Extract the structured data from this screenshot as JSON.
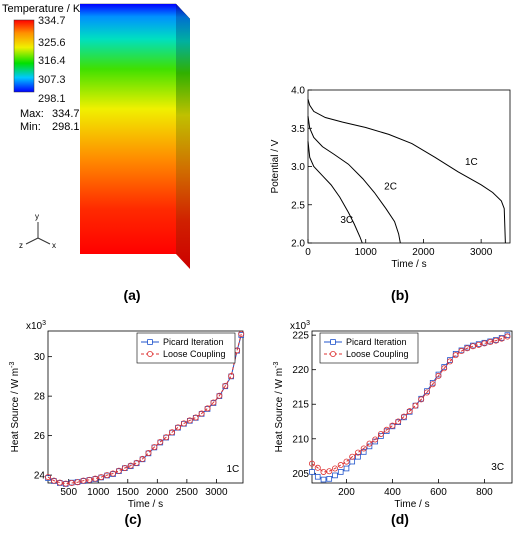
{
  "panel_a": {
    "caption": "(a)",
    "legend_title": "Temperature / K",
    "ticks": [
      "334.7",
      "325.6",
      "316.4",
      "307.3",
      "298.1"
    ],
    "max_label": "Max:",
    "max_value": "334.7",
    "min_label": "Min:",
    "min_value": "298.1",
    "axis_y": "y",
    "axis_z": "z",
    "axis_x": "x",
    "colormap": [
      "#0000ff",
      "#00c8ff",
      "#00e000",
      "#f0f000",
      "#ff9000",
      "#ff0000"
    ]
  },
  "chart_data": [
    {
      "id": "b",
      "type": "line",
      "caption": "(b)",
      "xlabel": "Time / s",
      "ylabel": "Potential / V",
      "xlim": [
        0,
        3500
      ],
      "ylim": [
        2.0,
        4.0
      ],
      "xticks": [
        0,
        1000,
        2000,
        3000
      ],
      "yticks": [
        2.0,
        2.5,
        3.0,
        3.5,
        4.0
      ],
      "ytick_labels": [
        "2.0",
        "2.5",
        "3.0",
        "3.5",
        "4.0"
      ],
      "series": [
        {
          "name": "1C",
          "color": "#000000",
          "x": [
            0,
            30,
            100,
            300,
            600,
            1000,
            1400,
            1800,
            2200,
            2600,
            3000,
            3200,
            3350,
            3400,
            3420
          ],
          "y": [
            3.88,
            3.8,
            3.72,
            3.64,
            3.58,
            3.51,
            3.42,
            3.3,
            3.12,
            2.93,
            2.76,
            2.66,
            2.55,
            2.45,
            2.0
          ]
        },
        {
          "name": "2C",
          "color": "#000000",
          "x": [
            0,
            30,
            100,
            250,
            450,
            700,
            950,
            1150,
            1350,
            1500,
            1570,
            1600
          ],
          "y": [
            3.66,
            3.5,
            3.38,
            3.26,
            3.16,
            3.03,
            2.84,
            2.66,
            2.45,
            2.28,
            2.12,
            2.0
          ]
        },
        {
          "name": "3C",
          "color": "#000000",
          "x": [
            0,
            30,
            100,
            250,
            400,
            550,
            700,
            800,
            900,
            940
          ],
          "y": [
            3.33,
            3.12,
            3.0,
            2.88,
            2.76,
            2.6,
            2.4,
            2.25,
            2.08,
            2.0
          ]
        }
      ],
      "annotations": [
        {
          "text": "1C",
          "x": 2720,
          "y": 3.02
        },
        {
          "text": "2C",
          "x": 1320,
          "y": 2.7
        },
        {
          "text": "3C",
          "x": 560,
          "y": 2.26
        }
      ]
    },
    {
      "id": "c",
      "type": "line",
      "caption": "(c)",
      "xlabel": "Time / s",
      "ylabel": "Heat Source / W m",
      "ylabel_superscript": "-3",
      "y_multiplier": "x10",
      "y_multiplier_exp": "3",
      "xlim": [
        150,
        3450
      ],
      "ylim": [
        23600,
        31300
      ],
      "xticks": [
        500,
        1000,
        1500,
        2000,
        2500,
        3000
      ],
      "yticks": [
        24000,
        26000,
        28000,
        30000
      ],
      "ytick_labels": [
        "24",
        "26",
        "28",
        "30"
      ],
      "annotations": [
        {
          "text": "1C",
          "x": 3170,
          "y": 24150
        }
      ],
      "legend": "top-right",
      "series": [
        {
          "name": "Picard Iteration",
          "color": "#2255cc",
          "dash": "",
          "marker": "square",
          "x": [
            150,
            250,
            350,
            450,
            550,
            650,
            750,
            850,
            950,
            1050,
            1150,
            1250,
            1350,
            1450,
            1550,
            1650,
            1750,
            1850,
            1950,
            2050,
            2150,
            2250,
            2350,
            2450,
            2550,
            2650,
            2750,
            2850,
            2950,
            3050,
            3150,
            3250,
            3350,
            3420
          ],
          "y": [
            23850,
            23700,
            23600,
            23550,
            23620,
            23650,
            23700,
            23750,
            23800,
            23880,
            23980,
            24050,
            24200,
            24350,
            24450,
            24600,
            24800,
            25100,
            25400,
            25650,
            25900,
            26150,
            26400,
            26600,
            26750,
            26900,
            27100,
            27350,
            27650,
            28000,
            28500,
            29000,
            30300,
            31100
          ]
        },
        {
          "name": "Loose Coupling",
          "color": "#dd3333",
          "dash": "3,2",
          "marker": "circle",
          "x": [
            150,
            250,
            350,
            450,
            550,
            650,
            750,
            850,
            950,
            1050,
            1150,
            1250,
            1350,
            1450,
            1550,
            1650,
            1750,
            1850,
            1950,
            2050,
            2150,
            2250,
            2350,
            2450,
            2550,
            2650,
            2750,
            2850,
            2950,
            3050,
            3150,
            3250,
            3350,
            3420
          ],
          "y": [
            23900,
            23720,
            23620,
            23570,
            23600,
            23640,
            23720,
            23760,
            23820,
            23900,
            24000,
            24080,
            24220,
            24360,
            24480,
            24620,
            24820,
            25120,
            25420,
            25680,
            25920,
            26170,
            26420,
            26620,
            26770,
            26920,
            27120,
            27380,
            27680,
            28020,
            28520,
            29020,
            30320,
            31150
          ]
        }
      ]
    },
    {
      "id": "d",
      "type": "line",
      "caption": "(d)",
      "xlabel": "Time / s",
      "ylabel": "Heat Source / W m",
      "ylabel_superscript": "-3",
      "y_multiplier": "x10",
      "y_multiplier_exp": "3",
      "xlim": [
        50,
        920
      ],
      "ylim": [
        203600,
        225600
      ],
      "xticks": [
        200,
        400,
        600,
        800
      ],
      "yticks": [
        205000,
        210000,
        215000,
        220000,
        225000
      ],
      "ytick_labels": [
        "205",
        "210",
        "215",
        "220",
        "225"
      ],
      "annotations": [
        {
          "text": "3C",
          "x": 830,
          "y": 205500
        }
      ],
      "legend": "top-left",
      "series": [
        {
          "name": "Picard Iteration",
          "color": "#2255cc",
          "dash": "",
          "marker": "square",
          "x": [
            50,
            75,
            100,
            125,
            150,
            175,
            200,
            225,
            250,
            275,
            300,
            325,
            350,
            375,
            400,
            425,
            450,
            475,
            500,
            525,
            550,
            575,
            600,
            625,
            650,
            675,
            700,
            725,
            750,
            775,
            800,
            825,
            850,
            875,
            900
          ],
          "y": [
            205200,
            204500,
            204100,
            204200,
            204700,
            205200,
            205700,
            206700,
            207400,
            208100,
            208900,
            209600,
            210400,
            211100,
            211800,
            212400,
            213100,
            213900,
            214800,
            215800,
            216900,
            218100,
            219300,
            220400,
            221400,
            222300,
            222800,
            223200,
            223500,
            223700,
            223900,
            224100,
            224300,
            224600,
            225000
          ]
        },
        {
          "name": "Loose Coupling",
          "color": "#dd3333",
          "dash": "3,2",
          "marker": "circle",
          "x": [
            50,
            75,
            100,
            125,
            150,
            175,
            200,
            225,
            250,
            275,
            300,
            325,
            350,
            375,
            400,
            425,
            450,
            475,
            500,
            525,
            550,
            575,
            600,
            625,
            650,
            675,
            700,
            725,
            750,
            775,
            800,
            825,
            850,
            875,
            900
          ],
          "y": [
            206400,
            205800,
            205200,
            205300,
            205700,
            206200,
            206700,
            207400,
            208000,
            208600,
            209300,
            209900,
            210700,
            211300,
            211900,
            212500,
            213200,
            214000,
            214800,
            215700,
            216700,
            217900,
            219100,
            220200,
            221200,
            222100,
            222700,
            223100,
            223400,
            223600,
            223800,
            224000,
            224200,
            224500,
            224800
          ]
        }
      ]
    }
  ]
}
